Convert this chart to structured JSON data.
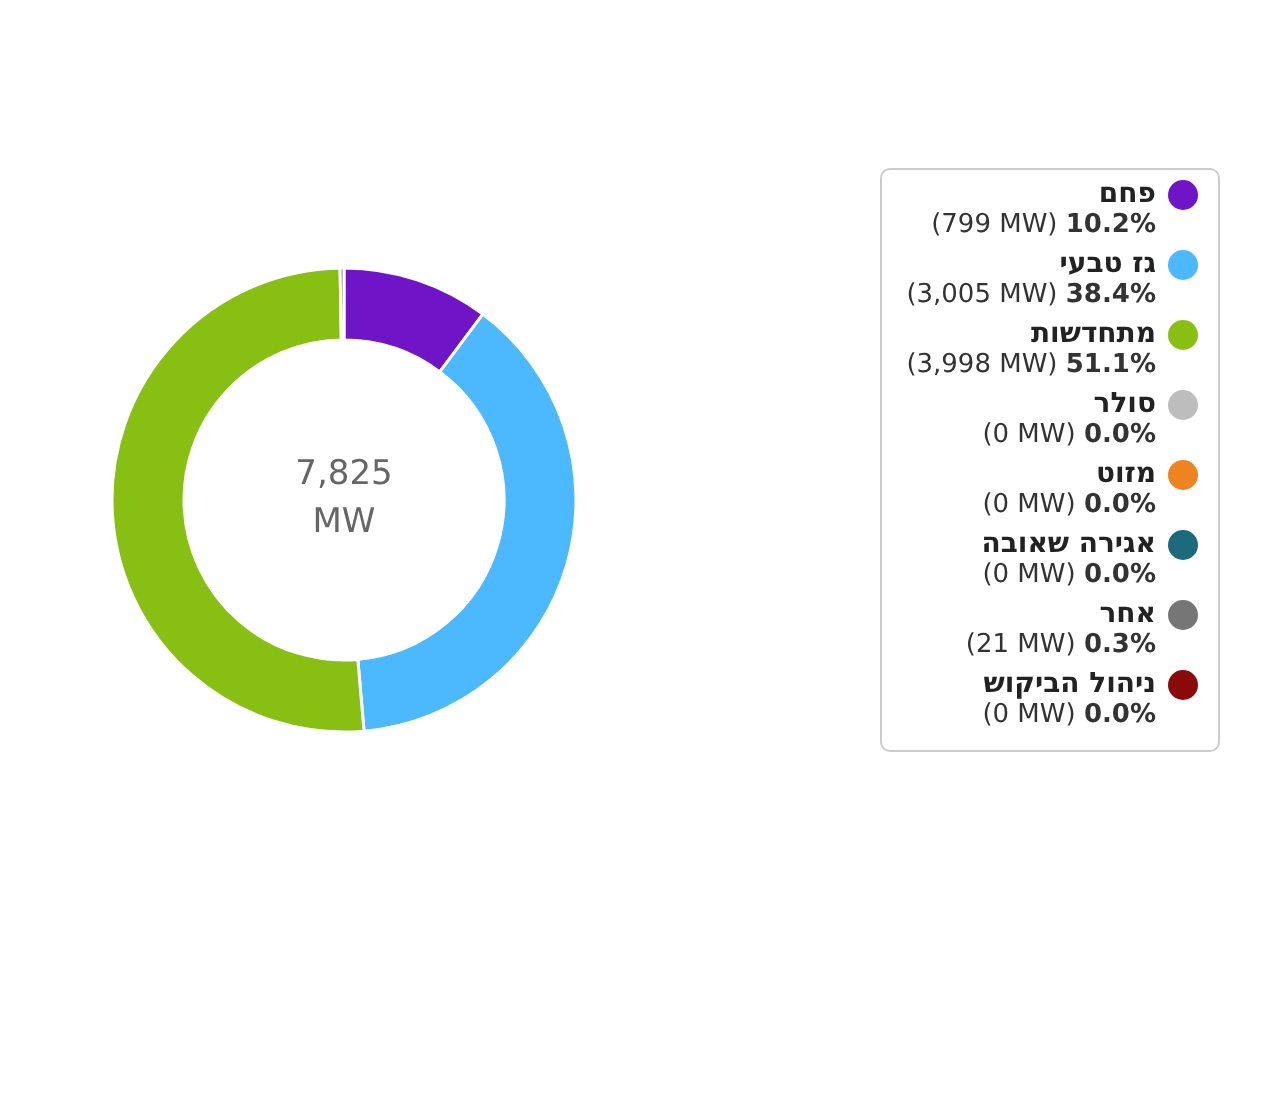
{
  "chart_data": {
    "type": "donut",
    "categories": [
      "פחם",
      "גז טבעי",
      "מתחדשות",
      "סולר",
      "מזוט",
      "אגירה שאובה",
      "אחר",
      "ניהול הביקוש"
    ],
    "values": [
      799,
      3005,
      3998,
      0,
      0,
      0,
      21,
      0
    ],
    "colors": [
      "#7014c8",
      "#4cb9ff",
      "#87c012",
      "#bdbdbd",
      "#ee8420",
      "#1d6a7d",
      "#767676",
      "#8a0a0a"
    ],
    "value_labels": [
      "(799 MW) 10.2%",
      "(3,005 MW) 38.4%",
      "(3,998 MW) 51.1%",
      "(0 MW) 0.0%",
      "(0 MW) 0.0%",
      "(0 MW) 0.0%",
      "(21 MW) 0.3%",
      "(0 MW) 0.0%"
    ],
    "annotations": [
      "7,825 MW"
    ],
    "legend": "right"
  }
}
